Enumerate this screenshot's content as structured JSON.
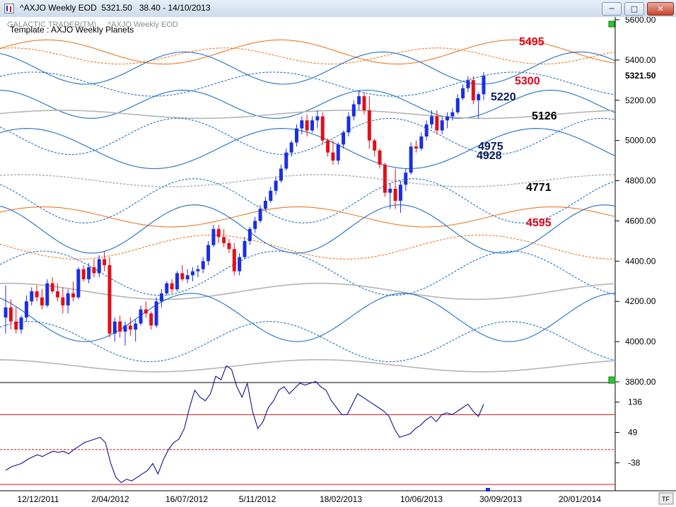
{
  "window": {
    "title_text": "^AXJO Weekly EOD  5321.50   38.40 - 14/10/2013",
    "min_icon": "minimize-icon",
    "max_icon": "maximize-icon",
    "close_icon": "close-icon"
  },
  "chart": {
    "watermark": "GALACTIC TRADER(TM)",
    "watermark2": "^AXJO Weekly EOD",
    "template": "Template : AXJO Weekly Planets",
    "corner_tag": "TF"
  },
  "chart_data": [
    {
      "type": "line",
      "subtype": "candlestick",
      "series": [],
      "candles": [
        [
          4120,
          4280,
          4040,
          4170
        ],
        [
          4170,
          4210,
          4060,
          4100
        ],
        [
          4100,
          4170,
          4040,
          4060
        ],
        [
          4060,
          4130,
          4040,
          4120
        ],
        [
          4120,
          4230,
          4100,
          4200
        ],
        [
          4200,
          4270,
          4180,
          4250
        ],
        [
          4250,
          4280,
          4200,
          4220
        ],
        [
          4220,
          4260,
          4160,
          4180
        ],
        [
          4180,
          4310,
          4170,
          4290
        ],
        [
          4290,
          4320,
          4240,
          4250
        ],
        [
          4250,
          4290,
          4200,
          4220
        ],
        [
          4220,
          4270,
          4140,
          4180
        ],
        [
          4180,
          4260,
          4140,
          4240
        ],
        [
          4240,
          4300,
          4200,
          4220
        ],
        [
          4220,
          4370,
          4210,
          4360
        ],
        [
          4360,
          4380,
          4300,
          4310
        ],
        [
          4310,
          4390,
          4290,
          4370
        ],
        [
          4370,
          4410,
          4320,
          4340
        ],
        [
          4340,
          4430,
          4320,
          4410
        ],
        [
          4410,
          4450,
          4350,
          4380
        ],
        [
          4380,
          4420,
          4020,
          4040
        ],
        [
          4040,
          4120,
          4000,
          4100
        ],
        [
          4100,
          4130,
          4020,
          4050
        ],
        [
          4050,
          4100,
          3980,
          4080
        ],
        [
          4080,
          4120,
          4030,
          4060
        ],
        [
          4060,
          4110,
          4000,
          4090
        ],
        [
          4090,
          4180,
          4080,
          4160
        ],
        [
          4160,
          4200,
          4120,
          4140
        ],
        [
          4140,
          4150,
          4060,
          4080
        ],
        [
          4080,
          4220,
          4070,
          4200
        ],
        [
          4200,
          4260,
          4170,
          4240
        ],
        [
          4240,
          4300,
          4230,
          4290
        ],
        [
          4290,
          4310,
          4240,
          4260
        ],
        [
          4260,
          4350,
          4250,
          4340
        ],
        [
          4340,
          4380,
          4300,
          4310
        ],
        [
          4310,
          4360,
          4290,
          4330
        ],
        [
          4330,
          4370,
          4300,
          4350
        ],
        [
          4350,
          4380,
          4320,
          4360
        ],
        [
          4360,
          4420,
          4340,
          4400
        ],
        [
          4400,
          4500,
          4380,
          4480
        ],
        [
          4480,
          4580,
          4470,
          4560
        ],
        [
          4560,
          4580,
          4490,
          4520
        ],
        [
          4520,
          4560,
          4470,
          4490
        ],
        [
          4490,
          4510,
          4440,
          4460
        ],
        [
          4460,
          4490,
          4330,
          4350
        ],
        [
          4350,
          4440,
          4330,
          4420
        ],
        [
          4420,
          4520,
          4410,
          4500
        ],
        [
          4500,
          4570,
          4480,
          4560
        ],
        [
          4560,
          4620,
          4540,
          4600
        ],
        [
          4600,
          4680,
          4590,
          4660
        ],
        [
          4660,
          4720,
          4650,
          4700
        ],
        [
          4700,
          4770,
          4690,
          4750
        ],
        [
          4750,
          4820,
          4730,
          4800
        ],
        [
          4800,
          4880,
          4790,
          4860
        ],
        [
          4860,
          4960,
          4850,
          4940
        ],
        [
          4940,
          5000,
          4920,
          4990
        ],
        [
          4990,
          5080,
          4970,
          5060
        ],
        [
          5060,
          5120,
          5030,
          5100
        ],
        [
          5100,
          5130,
          5020,
          5050
        ],
        [
          5050,
          5120,
          5040,
          5100
        ],
        [
          5100,
          5150,
          5060,
          5120
        ],
        [
          5120,
          5140,
          4980,
          5000
        ],
        [
          5000,
          5010,
          4920,
          4940
        ],
        [
          4940,
          5000,
          4880,
          4900
        ],
        [
          4900,
          4990,
          4880,
          4980
        ],
        [
          4980,
          5050,
          4960,
          5040
        ],
        [
          5040,
          5140,
          5020,
          5120
        ],
        [
          5120,
          5200,
          5100,
          5180
        ],
        [
          5180,
          5250,
          5150,
          5220
        ],
        [
          5220,
          5240,
          5130,
          5150
        ],
        [
          5150,
          5220,
          4960,
          5000
        ],
        [
          5000,
          5010,
          4920,
          4950
        ],
        [
          4950,
          4960,
          4860,
          4880
        ],
        [
          4880,
          4890,
          4720,
          4740
        ],
        [
          4740,
          4790,
          4660,
          4760
        ],
        [
          4760,
          4860,
          4660,
          4700
        ],
        [
          4700,
          4800,
          4640,
          4780
        ],
        [
          4780,
          4860,
          4750,
          4840
        ],
        [
          4840,
          4990,
          4830,
          4970
        ],
        [
          4970,
          5000,
          4940,
          4960
        ],
        [
          4960,
          5040,
          4950,
          5020
        ],
        [
          5020,
          5100,
          5000,
          5080
        ],
        [
          5080,
          5150,
          5060,
          5120
        ],
        [
          5120,
          5150,
          5030,
          5050
        ],
        [
          5050,
          5120,
          5030,
          5100
        ],
        [
          5100,
          5140,
          5060,
          5120
        ],
        [
          5120,
          5160,
          5100,
          5140
        ],
        [
          5140,
          5230,
          5130,
          5210
        ],
        [
          5210,
          5280,
          5200,
          5260
        ],
        [
          5260,
          5320,
          5240,
          5300
        ],
        [
          5300,
          5320,
          5180,
          5200
        ],
        [
          5200,
          5240,
          5110,
          5230
        ],
        [
          5230,
          5340,
          5200,
          5321.5
        ]
      ],
      "ylim": [
        3800,
        5600
      ],
      "y_ticks": [
        "5600.00",
        "5400.00",
        "5200.00",
        "5000.00",
        "4800.00",
        "4600.00",
        "4400.00",
        "4200.00",
        "4000.00",
        "3800.00"
      ],
      "y_tick_values": [
        5600,
        5400,
        5200,
        5000,
        4800,
        4600,
        4400,
        4200,
        4000,
        3800
      ],
      "last_price": "5321.50",
      "planet_levels": [
        {
          "value": 5495,
          "label": "5495",
          "color": "#e0001b",
          "label_color": "#e0001b"
        },
        {
          "value": 5300,
          "label": "5300",
          "color": "#ee7722",
          "label_color": "#e0001b"
        },
        {
          "value": 5220,
          "label": "5220",
          "color": "#1e6fc8",
          "label_color": "#0a1a5e"
        },
        {
          "value": 5126,
          "label": "5126",
          "color": "#aaaaaa",
          "label_color": "#000000"
        },
        {
          "value": 4975,
          "label": "4975",
          "color": "#1e6fc8",
          "label_color": "#0a1a5e"
        },
        {
          "value": 4928,
          "label": "4928",
          "color": "#1e6fc8",
          "label_color": "#0a1a5e"
        },
        {
          "value": 4771,
          "label": "4771",
          "color": "#aaaaaa",
          "label_color": "#000000"
        },
        {
          "value": 4595,
          "label": "4595",
          "color": "#ee7722",
          "label_color": "#e0001b"
        }
      ],
      "colors": {
        "up": "#1a2fe0",
        "down": "#e0101a",
        "wave_blue": "#1e6fc8",
        "wave_orange": "#ee7722",
        "wave_grey": "#b4b4b4"
      }
    },
    {
      "type": "line",
      "series": [
        {
          "values": [
            -60,
            -50,
            -45,
            -40,
            -30,
            -22,
            -15,
            -20,
            -12,
            -5,
            -8,
            -5,
            -12,
            0,
            10,
            20,
            25,
            30,
            35,
            20,
            -40,
            -80,
            -95,
            -85,
            -90,
            -80,
            -70,
            -60,
            -40,
            -70,
            -30,
            0,
            20,
            30,
            60,
            120,
            170,
            150,
            140,
            160,
            210,
            200,
            240,
            230,
            180,
            150,
            190,
            110,
            60,
            80,
            120,
            140,
            170,
            180,
            160,
            175,
            190,
            185,
            190,
            195,
            180,
            170,
            140,
            120,
            100,
            100,
            130,
            160,
            150,
            140,
            130,
            120,
            110,
            95,
            60,
            35,
            40,
            45,
            60,
            70,
            85,
            95,
            80,
            100,
            105,
            100,
            110,
            120,
            130,
            110,
            95,
            130
          ]
        }
      ],
      "ylim": [
        -110,
        190
      ],
      "y_ticks": [
        "136",
        "49",
        "-38"
      ],
      "y_tick_values": [
        136,
        49,
        -38
      ],
      "ref_lines": [
        100,
        0,
        -100
      ],
      "x_ticks": [
        "12/12/2011",
        "2/04/2012",
        "16/07/2012",
        "5/11/2012",
        "18/02/2013",
        "10/06/2013",
        "30/09/2013",
        "20/01/2014"
      ]
    }
  ]
}
